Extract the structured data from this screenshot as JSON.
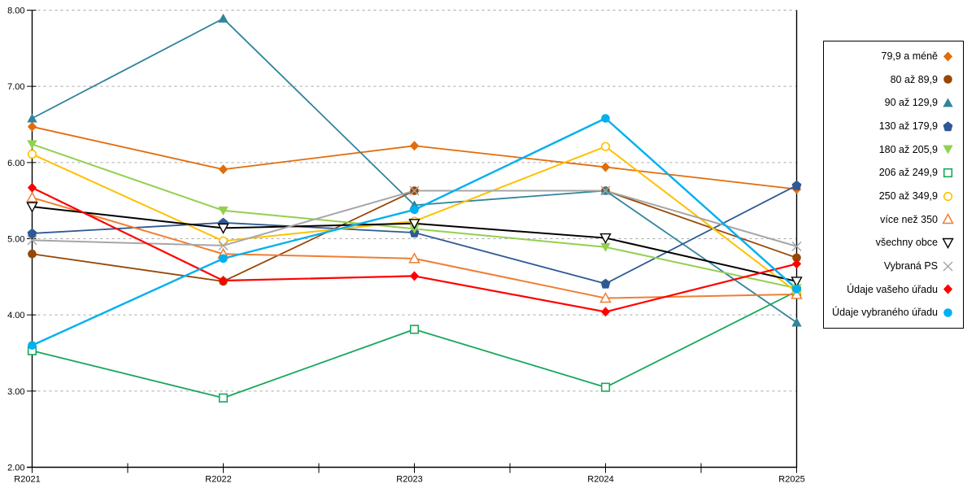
{
  "chart_data": {
    "type": "line",
    "title": "",
    "xlabel": "",
    "ylabel": "",
    "categories": [
      "R2021",
      "R2022",
      "R2023",
      "R2024",
      "R2025"
    ],
    "ylim": [
      2.0,
      8.0
    ],
    "ytick_labels": [
      "8.00",
      "7.00",
      "6.00",
      "5.00",
      "4.00",
      "3.00",
      "2.00"
    ],
    "grid": "horizontal-dashed",
    "gridline_color": "#A6A6A6",
    "axis_color": "#000000",
    "legend_position": "right",
    "series": [
      {
        "name": "79,9 a méně",
        "color": "#E36C0A",
        "marker": "diamond-filled",
        "line_width": 1.8,
        "values": [
          6.47,
          5.91,
          6.22,
          5.94,
          5.65
        ]
      },
      {
        "name": "80 až 89,9",
        "color": "#974806",
        "marker": "circle-filled",
        "line_width": 1.8,
        "values": [
          4.8,
          4.44,
          5.63,
          5.63,
          4.75
        ]
      },
      {
        "name": "90 až 129,9",
        "color": "#31849B",
        "marker": "triangle-up-filled",
        "line_width": 1.8,
        "values": [
          6.58,
          7.89,
          5.44,
          5.63,
          3.9
        ]
      },
      {
        "name": "130 až 179,9",
        "color": "#2E5994",
        "marker": "pentagon-filled",
        "line_width": 1.8,
        "values": [
          5.07,
          5.21,
          5.08,
          4.41,
          5.7
        ]
      },
      {
        "name": "180 až 205,9",
        "color": "#92D050",
        "marker": "triangle-down-filled",
        "line_width": 2.0,
        "values": [
          6.24,
          5.37,
          5.13,
          4.89,
          4.35
        ]
      },
      {
        "name": "206 až 249,9",
        "color": "#18A85B",
        "marker": "square-open",
        "line_width": 1.8,
        "values": [
          3.53,
          2.91,
          3.81,
          3.05,
          4.31
        ]
      },
      {
        "name": "250 až 349,9",
        "color": "#FFC000",
        "marker": "circle-open",
        "line_width": 2.0,
        "values": [
          6.11,
          4.97,
          5.23,
          6.21,
          4.3
        ]
      },
      {
        "name": "více než 350",
        "color": "#F07E33",
        "marker": "triangle-up-open",
        "line_width": 2.0,
        "values": [
          5.54,
          4.8,
          4.74,
          4.22,
          4.27
        ]
      },
      {
        "name": "všechny obce",
        "color": "#000000",
        "marker": "triangle-down-open",
        "line_width": 2.0,
        "values": [
          5.42,
          5.14,
          5.2,
          5.01,
          4.44
        ]
      },
      {
        "name": "Vybraná PS",
        "color": "#A6A6A6",
        "marker": "x",
        "line_width": 2.0,
        "values": [
          4.98,
          4.91,
          5.63,
          5.63,
          4.9
        ]
      },
      {
        "name": "Údaje vašeho úřadu",
        "color": "#FF0000",
        "marker": "diamond-filled",
        "line_width": 2.2,
        "values": [
          5.67,
          4.45,
          4.51,
          4.04,
          4.67
        ]
      },
      {
        "name": "Údaje vybraného úřadu",
        "color": "#00B0F0",
        "marker": "circle-filled",
        "line_width": 2.4,
        "values": [
          3.6,
          4.74,
          5.38,
          6.58,
          4.34
        ]
      }
    ]
  }
}
